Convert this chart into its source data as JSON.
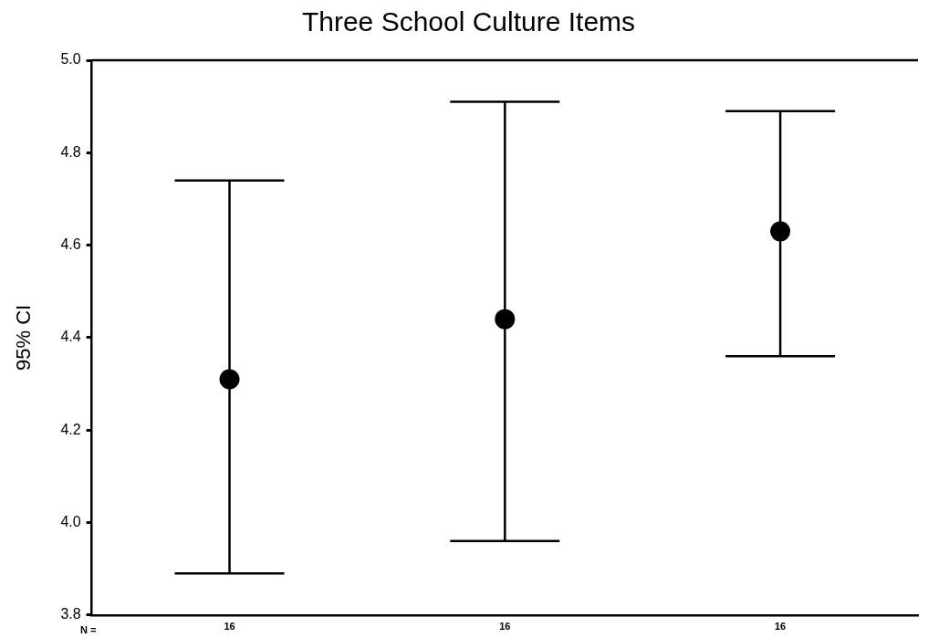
{
  "chart_data": {
    "type": "scatter",
    "title": "Three School Culture Items",
    "ylabel": "95% CI",
    "categories": [
      "16",
      "16",
      "16"
    ],
    "series": [
      {
        "color": "#000000",
        "values": [
          4.31,
          4.44,
          4.63
        ],
        "errors": [
          [
            3.89,
            4.74
          ],
          [
            3.96,
            4.91
          ],
          [
            4.36,
            4.89
          ]
        ]
      }
    ],
    "ylim": [
      3.8,
      5.0
    ],
    "yticks": [
      3.8,
      {
        "value": 4,
        "label": "4.0"
      },
      4.2,
      4.4,
      4.6,
      4.8,
      {
        "value": 5,
        "label": "5.0"
      }
    ],
    "annotations": [
      "N ="
    ],
    "marker": "circle",
    "grid": false,
    "legend": false
  }
}
